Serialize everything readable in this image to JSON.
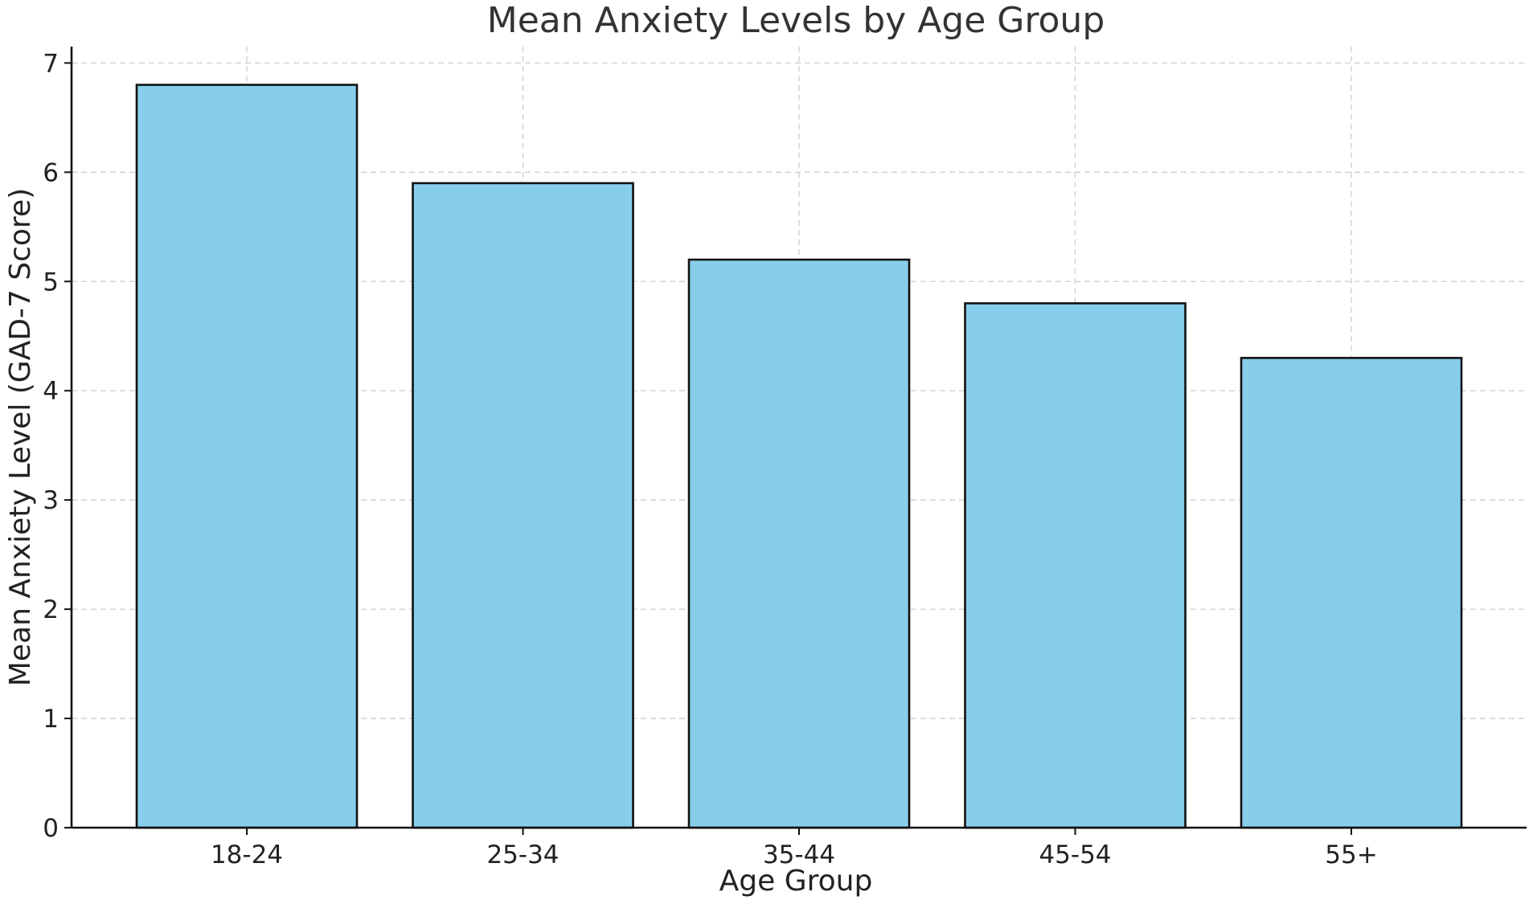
{
  "chart_data": {
    "type": "bar",
    "title": "Mean Anxiety Levels by Age Group",
    "xlabel": "Age Group",
    "ylabel": "Mean Anxiety Level (GAD-7 Score)",
    "categories": [
      "18-24",
      "25-34",
      "35-44",
      "45-54",
      "55+"
    ],
    "values": [
      6.8,
      5.9,
      5.2,
      4.8,
      4.3
    ],
    "ylim": [
      0,
      7.15
    ],
    "yticks": [
      0,
      1,
      2,
      3,
      4,
      5,
      6,
      7
    ],
    "grid": true,
    "bar_color": "#87CEEB",
    "edge_color": "#111111"
  }
}
